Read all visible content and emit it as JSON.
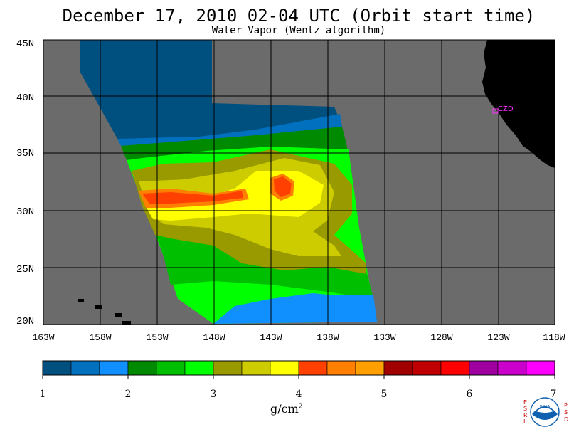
{
  "header": {
    "title": "December 17, 2010  02-04 UTC  (Orbit start time)",
    "subtitle": "Water Vapor (Wentz algorithm)"
  },
  "map": {
    "lat_labels": [
      "45N",
      "40N",
      "35N",
      "30N",
      "25N",
      "20N"
    ],
    "lon_labels": [
      "163W",
      "158W",
      "153W",
      "148W",
      "143W",
      "138W",
      "133W",
      "128W",
      "123W",
      "118W"
    ],
    "station_label": "CZD",
    "colors": {
      "ocean_no_data": "#6b6b6b",
      "land": "#000000",
      "grid": "#000000",
      "station": "#ff33ff"
    }
  },
  "colorbar": {
    "ticks": [
      "1",
      "2",
      "3",
      "4",
      "5",
      "6",
      "7"
    ],
    "unit": "g/cm",
    "unit_exp": "2",
    "colors": [
      "#00507f",
      "#0070bf",
      "#1090ff",
      "#008a00",
      "#00bf00",
      "#00ff00",
      "#999900",
      "#cccc00",
      "#ffff00",
      "#ff4000",
      "#ff7f00",
      "#ffa000",
      "#a00000",
      "#c00000",
      "#ff0000",
      "#a000a0",
      "#cc00cc",
      "#ff00ff"
    ]
  },
  "logo": {
    "left_letters": [
      "E",
      "S",
      "R",
      "L"
    ],
    "right_letters": [
      "P",
      "S",
      "D"
    ],
    "badge": "NOAA"
  }
}
